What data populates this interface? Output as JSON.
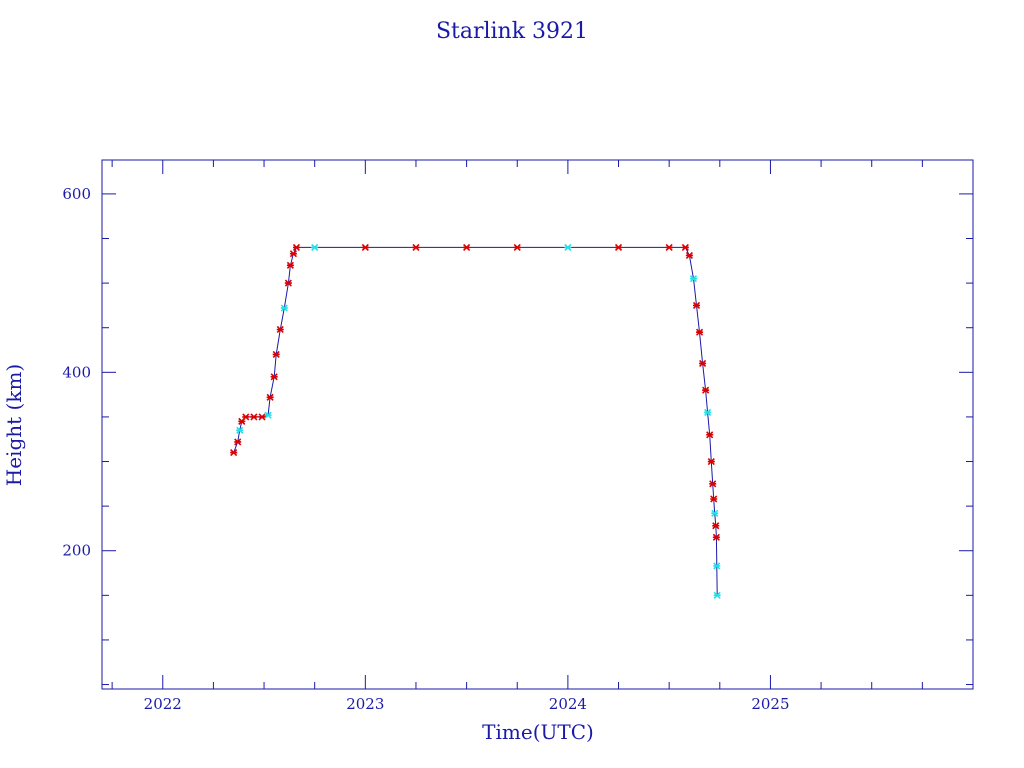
{
  "chart_data": {
    "type": "scatter",
    "title": "Starlink 3921",
    "xlabel": "Time(UTC)",
    "ylabel": "Height (km)",
    "xlim": [
      2021.7,
      2026.0
    ],
    "ylim": [
      45,
      638
    ],
    "x_ticks": [
      "2022",
      "2023",
      "2024",
      "2025"
    ],
    "y_ticks": [
      "200",
      "400",
      "600"
    ],
    "grid": false,
    "colors": {
      "frame": "#1a1aa8",
      "line": "#1a1aa8",
      "marker_primary": "#dd0000",
      "marker_secondary": "#22e0e8"
    },
    "series": [
      {
        "values": [
          [
            2022.35,
            310
          ],
          [
            2022.37,
            322
          ],
          [
            2022.38,
            335
          ],
          [
            2022.39,
            345
          ],
          [
            2022.41,
            350
          ],
          [
            2022.45,
            350
          ],
          [
            2022.49,
            350
          ],
          [
            2022.52,
            352
          ],
          [
            2022.53,
            372
          ],
          [
            2022.55,
            395
          ],
          [
            2022.56,
            420
          ],
          [
            2022.58,
            448
          ],
          [
            2022.6,
            472
          ],
          [
            2022.62,
            500
          ],
          [
            2022.63,
            520
          ],
          [
            2022.645,
            533
          ],
          [
            2022.66,
            540
          ],
          [
            2022.75,
            540
          ],
          [
            2023.0,
            540
          ],
          [
            2023.25,
            540
          ],
          [
            2023.5,
            540
          ],
          [
            2023.75,
            540
          ],
          [
            2024.0,
            540
          ],
          [
            2024.25,
            540
          ],
          [
            2024.5,
            540
          ],
          [
            2024.58,
            540
          ],
          [
            2024.6,
            531
          ],
          [
            2024.62,
            505
          ],
          [
            2024.635,
            475
          ],
          [
            2024.65,
            445
          ],
          [
            2024.665,
            410
          ],
          [
            2024.68,
            380
          ],
          [
            2024.69,
            355
          ],
          [
            2024.7,
            330
          ],
          [
            2024.708,
            300
          ],
          [
            2024.715,
            275
          ],
          [
            2024.72,
            258
          ],
          [
            2024.725,
            242
          ],
          [
            2024.73,
            228
          ],
          [
            2024.733,
            215
          ],
          [
            2024.735,
            183
          ],
          [
            2024.737,
            150
          ]
        ]
      }
    ]
  }
}
